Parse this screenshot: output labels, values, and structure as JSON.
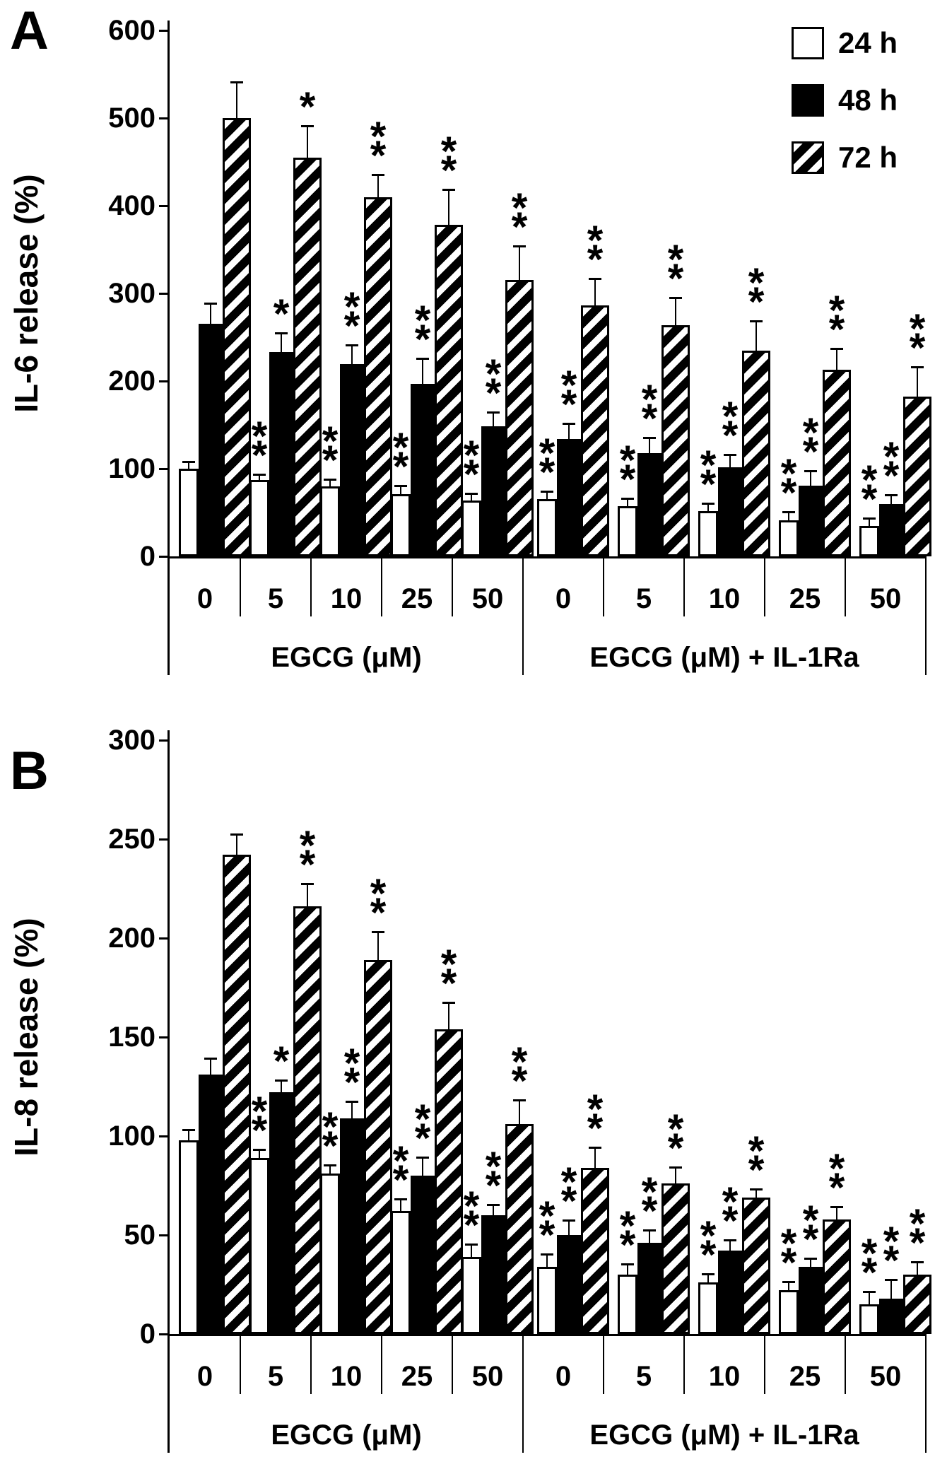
{
  "legend": {
    "items": [
      "24 h",
      "48 h",
      "72 h"
    ]
  },
  "chart_data": [
    {
      "type": "grouped_bar",
      "panel": "A",
      "ylabel": "IL-6 release (%)",
      "ylim": [
        0,
        600
      ],
      "yticks": [
        0,
        100,
        200,
        300,
        400,
        500,
        600
      ],
      "ytick_labels": [
        "0",
        "100",
        "200",
        "300",
        "400",
        "500",
        "600"
      ],
      "grid": false,
      "legend_position": "top-right",
      "groups": [
        {
          "label": "EGCG (μM)",
          "categories": [
            "0",
            "5",
            "10",
            "25",
            "50"
          ]
        },
        {
          "label": "EGCG (μM) + IL-1Ra",
          "categories": [
            "0",
            "5",
            "10",
            "25",
            "50"
          ]
        }
      ],
      "series": [
        {
          "name": "24 h",
          "fill": "open",
          "values": [
            100,
            87,
            80,
            71,
            64,
            65,
            57,
            52,
            41,
            35
          ],
          "errors": [
            7,
            6,
            7,
            9,
            7,
            8,
            8,
            8,
            9,
            8
          ],
          "significance": [
            "",
            "**",
            "**",
            "**",
            "**",
            "**",
            "**",
            "**",
            "**",
            "**"
          ]
        },
        {
          "name": "48 h",
          "fill": "solid",
          "values": [
            265,
            233,
            219,
            197,
            148,
            134,
            118,
            102,
            81,
            60
          ],
          "errors": [
            23,
            21,
            21,
            28,
            16,
            17,
            17,
            13,
            16,
            9
          ],
          "significance": [
            "",
            "*",
            "**",
            "**",
            "**",
            "**",
            "**",
            "**",
            "**",
            "**"
          ]
        },
        {
          "name": "72 h",
          "fill": "hatched",
          "values": [
            500,
            455,
            410,
            378,
            315,
            286,
            264,
            235,
            213,
            182
          ],
          "errors": [
            40,
            35,
            25,
            40,
            38,
            30,
            30,
            33,
            23,
            33
          ],
          "significance": [
            "",
            "*",
            "**",
            "**",
            "**",
            "**",
            "**",
            "**",
            "**",
            "**"
          ]
        }
      ]
    },
    {
      "type": "grouped_bar",
      "panel": "B",
      "ylabel": "IL-8 release (%)",
      "ylim": [
        0,
        300
      ],
      "yticks": [
        0,
        50,
        100,
        150,
        200,
        250,
        300
      ],
      "ytick_labels": [
        "0",
        "50",
        "100",
        "150",
        "200",
        "250",
        "300"
      ],
      "grid": false,
      "legend_position": "none",
      "groups": [
        {
          "label": "EGCG (μM)",
          "categories": [
            "0",
            "5",
            "10",
            "25",
            "50"
          ]
        },
        {
          "label": "EGCG (μM) + IL-1Ra",
          "categories": [
            "0",
            "5",
            "10",
            "25",
            "50"
          ]
        }
      ],
      "series": [
        {
          "name": "24 h",
          "fill": "open",
          "values": [
            98,
            89,
            81,
            62,
            39,
            34,
            30,
            26,
            22,
            15
          ],
          "errors": [
            5,
            4,
            4,
            6,
            6,
            6,
            5,
            4,
            4,
            6
          ],
          "significance": [
            "",
            "**",
            "**",
            "**",
            "**",
            "**",
            "**",
            "**",
            "**",
            "**"
          ]
        },
        {
          "name": "48 h",
          "fill": "solid",
          "values": [
            131,
            122,
            109,
            80,
            60,
            50,
            46,
            42,
            34,
            18
          ],
          "errors": [
            8,
            6,
            8,
            9,
            5,
            7,
            6,
            5,
            4,
            9
          ],
          "significance": [
            "",
            "*",
            "**",
            "**",
            "**",
            "**",
            "**",
            "**",
            "**",
            "**"
          ]
        },
        {
          "name": "72 h",
          "fill": "hatched",
          "values": [
            242,
            216,
            189,
            154,
            106,
            84,
            76,
            69,
            58,
            30
          ],
          "errors": [
            10,
            11,
            14,
            13,
            12,
            10,
            8,
            4,
            6,
            6
          ],
          "significance": [
            "",
            "**",
            "**",
            "**",
            "**",
            "**",
            "**",
            "**",
            "**",
            "**"
          ]
        }
      ]
    }
  ]
}
